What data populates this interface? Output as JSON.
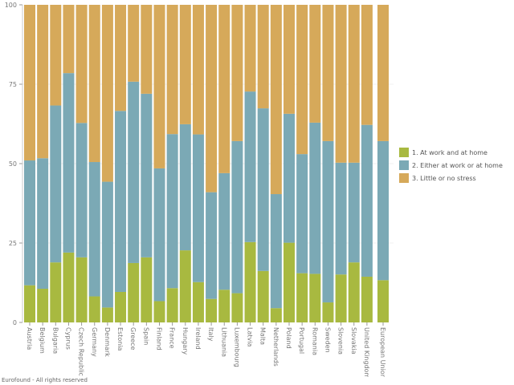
{
  "chart_data": {
    "type": "bar",
    "stacked": true,
    "categories": [
      "Austria",
      "Belgium",
      "Bulgaria",
      "Cyprus",
      "Czech Republic",
      "Germany",
      "Denmark",
      "Estonia",
      "Greece",
      "Spain",
      "Finland",
      "France",
      "Hungary",
      "Ireland",
      "Italy",
      "Lithuania",
      "Luxembourg",
      "Latvia",
      "Malta",
      "Netherlands",
      "Poland",
      "Portugal",
      "Romania",
      "Sweden",
      "Slovenia",
      "Slovakia",
      "United Kingdom",
      "European Union"
    ],
    "series": [
      {
        "name": "1. At work and at home",
        "color": "#a8b940",
        "values": [
          11.7,
          10.6,
          18.9,
          22.0,
          20.5,
          8.2,
          4.7,
          9.6,
          18.7,
          20.5,
          6.7,
          10.8,
          22.7,
          12.7,
          7.4,
          10.3,
          9.2,
          25.3,
          16.2,
          4.5,
          25.1,
          15.5,
          15.3,
          6.3,
          15.1,
          18.9,
          14.4,
          13.3
        ]
      },
      {
        "name": "2. Either at work or at home",
        "color": "#7ba9b5",
        "values": [
          39.3,
          41.1,
          49.4,
          56.5,
          42.3,
          42.3,
          39.6,
          57.0,
          57.1,
          51.5,
          41.8,
          48.5,
          39.7,
          46.5,
          33.6,
          36.7,
          47.9,
          47.4,
          51.2,
          35.9,
          40.6,
          37.5,
          47.6,
          50.8,
          35.2,
          31.4,
          47.8,
          43.8
        ]
      },
      {
        "name": "3. Little or no stress",
        "color": "#d6a95a",
        "values": [
          49.0,
          48.3,
          31.7,
          21.5,
          37.2,
          49.5,
          55.7,
          33.4,
          24.2,
          28.0,
          51.5,
          40.7,
          37.6,
          40.8,
          59.0,
          53.0,
          42.9,
          27.3,
          32.6,
          59.6,
          34.3,
          47.0,
          37.1,
          42.9,
          49.7,
          49.7,
          37.8,
          42.9
        ]
      }
    ],
    "yticks": [
      "0",
      "25",
      "50",
      "75",
      "100"
    ],
    "ylim": [
      0,
      100
    ],
    "legend_position": "right",
    "grid": true
  },
  "footer": "Eurofound - All rights reserved"
}
